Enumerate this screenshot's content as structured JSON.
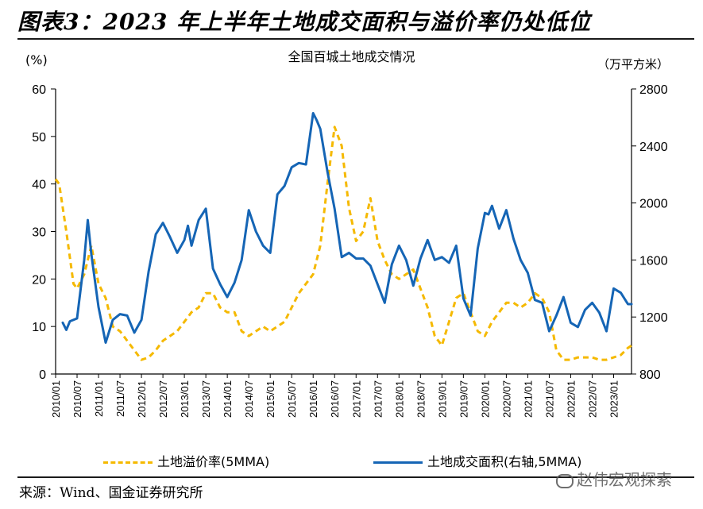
{
  "figure_title": "图表3：2023 年上半年土地成交面积与溢价率仍处低位",
  "chart_title": "全国百城土地成交情况",
  "left_unit": "(%)",
  "right_unit": "（万平方米）",
  "source": "来源：Wind、国金证券研究所",
  "watermark": "赵伟宏观探索",
  "colors": {
    "premium": "#f5b900",
    "area": "#1565b5",
    "axis": "#000000"
  },
  "chart_data": {
    "type": "line",
    "x_ticks": [
      "2010/01",
      "2010/07",
      "2011/01",
      "2011/07",
      "2012/01",
      "2012/07",
      "2013/01",
      "2013/07",
      "2014/01",
      "2014/07",
      "2015/01",
      "2015/07",
      "2016/01",
      "2016/07",
      "2017/01",
      "2017/07",
      "2018/01",
      "2018/07",
      "2019/01",
      "2019/07",
      "2020/01",
      "2020/07",
      "2021/01",
      "2021/07",
      "2022/01",
      "2022/07",
      "2023/01"
    ],
    "y_left": {
      "min": 0,
      "max": 60,
      "ticks": [
        0,
        10,
        20,
        30,
        40,
        50,
        60
      ]
    },
    "y_right": {
      "min": 800,
      "max": 2800,
      "ticks": [
        800,
        1200,
        1600,
        2000,
        2400,
        2800
      ]
    },
    "series": [
      {
        "name": "土地溢价率(5MMA)",
        "axis": "left",
        "style": "dashed",
        "x": [
          "2010/01",
          "2010/02",
          "2010/04",
          "2010/06",
          "2010/07",
          "2010/09",
          "2010/11",
          "2011/01",
          "2011/03",
          "2011/05",
          "2011/07",
          "2011/09",
          "2011/11",
          "2012/01",
          "2012/03",
          "2012/05",
          "2012/07",
          "2012/09",
          "2012/11",
          "2013/01",
          "2013/03",
          "2013/05",
          "2013/07",
          "2013/09",
          "2013/11",
          "2014/01",
          "2014/03",
          "2014/05",
          "2014/07",
          "2014/09",
          "2014/11",
          "2015/01",
          "2015/03",
          "2015/05",
          "2015/07",
          "2015/09",
          "2015/11",
          "2016/01",
          "2016/03",
          "2016/05",
          "2016/07",
          "2016/09",
          "2016/11",
          "2017/01",
          "2017/03",
          "2017/05",
          "2017/07",
          "2017/09",
          "2017/11",
          "2018/01",
          "2018/03",
          "2018/05",
          "2018/07",
          "2018/09",
          "2018/11",
          "2019/01",
          "2019/03",
          "2019/05",
          "2019/07",
          "2019/09",
          "2019/11",
          "2020/01",
          "2020/03",
          "2020/05",
          "2020/07",
          "2020/09",
          "2020/11",
          "2021/01",
          "2021/03",
          "2021/05",
          "2021/07",
          "2021/09",
          "2021/11",
          "2022/01",
          "2022/03",
          "2022/05",
          "2022/07",
          "2022/09",
          "2022/11",
          "2023/01",
          "2023/03",
          "2023/05",
          "2023/06"
        ],
        "values": [
          41,
          40,
          30,
          19,
          18,
          21,
          27,
          19,
          16,
          10,
          9,
          7,
          5,
          3,
          3.5,
          5,
          7,
          8,
          9,
          11,
          13,
          14,
          17,
          17,
          14,
          13,
          13,
          9,
          8,
          9,
          10,
          9,
          10,
          11,
          14,
          17,
          19,
          21,
          27,
          40,
          52,
          48,
          35,
          28,
          30,
          37,
          28,
          24,
          21,
          20,
          21,
          22,
          18,
          14,
          8,
          6,
          11,
          16,
          17,
          13,
          9,
          8,
          11,
          13,
          15,
          15,
          14,
          15,
          17,
          16,
          13,
          5,
          3,
          3,
          3.5,
          3.5,
          3.5,
          3,
          3,
          3.5,
          4,
          5.5,
          6
        ]
      },
      {
        "name": "土地成交面积(右轴,5MMA)",
        "axis": "right",
        "style": "solid",
        "x": [
          "2010/03",
          "2010/04",
          "2010/05",
          "2010/07",
          "2010/09",
          "2010/10",
          "2010/11",
          "2011/01",
          "2011/03",
          "2011/05",
          "2011/07",
          "2011/09",
          "2011/11",
          "2012/01",
          "2012/03",
          "2012/05",
          "2012/07",
          "2012/09",
          "2012/11",
          "2013/01",
          "2013/02",
          "2013/03",
          "2013/05",
          "2013/07",
          "2013/09",
          "2013/11",
          "2014/01",
          "2014/03",
          "2014/05",
          "2014/07",
          "2014/09",
          "2014/11",
          "2015/01",
          "2015/03",
          "2015/05",
          "2015/07",
          "2015/09",
          "2015/11",
          "2016/01",
          "2016/02",
          "2016/03",
          "2016/05",
          "2016/07",
          "2016/09",
          "2016/11",
          "2017/01",
          "2017/03",
          "2017/05",
          "2017/07",
          "2017/09",
          "2017/11",
          "2018/01",
          "2018/03",
          "2018/05",
          "2018/07",
          "2018/09",
          "2018/11",
          "2019/01",
          "2019/03",
          "2019/05",
          "2019/07",
          "2019/09",
          "2019/11",
          "2020/01",
          "2020/02",
          "2020/03",
          "2020/05",
          "2020/07",
          "2020/09",
          "2020/11",
          "2021/01",
          "2021/03",
          "2021/05",
          "2021/07",
          "2021/09",
          "2021/11",
          "2022/01",
          "2022/03",
          "2022/05",
          "2022/07",
          "2022/09",
          "2022/11",
          "2023/01",
          "2023/03",
          "2023/05",
          "2023/06"
        ],
        "values": [
          1160,
          1110,
          1170,
          1190,
          1600,
          1880,
          1640,
          1270,
          1020,
          1180,
          1220,
          1210,
          1090,
          1180,
          1520,
          1780,
          1860,
          1760,
          1650,
          1740,
          1840,
          1700,
          1880,
          1960,
          1540,
          1430,
          1340,
          1440,
          1600,
          1950,
          1800,
          1700,
          1650,
          2060,
          2120,
          2250,
          2280,
          2270,
          2630,
          2580,
          2520,
          2220,
          1960,
          1620,
          1650,
          1610,
          1610,
          1560,
          1430,
          1300,
          1570,
          1700,
          1600,
          1420,
          1610,
          1740,
          1600,
          1620,
          1580,
          1700,
          1330,
          1210,
          1680,
          1930,
          1920,
          1980,
          1820,
          1950,
          1750,
          1600,
          1510,
          1320,
          1300,
          1100,
          1210,
          1340,
          1160,
          1130,
          1250,
          1300,
          1230,
          1100,
          1400,
          1370,
          1290,
          1290
        ]
      }
    ]
  }
}
